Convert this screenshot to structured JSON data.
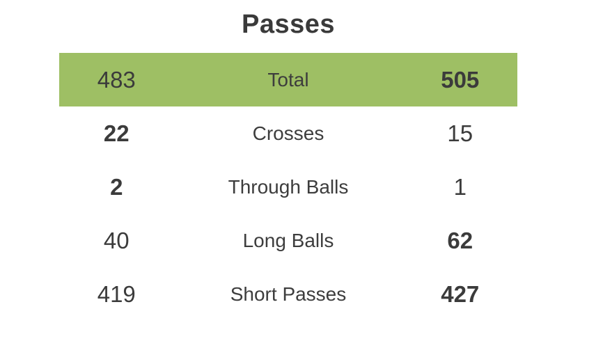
{
  "title": "Passes",
  "colors": {
    "highlight_row_bg": "#9EBF64",
    "text": "#3B3B3B"
  },
  "rows": [
    {
      "label": "Total",
      "home_value": "483",
      "away_value": "505",
      "highlighted": true,
      "home_bold": false,
      "away_bold": true
    },
    {
      "label": "Crosses",
      "home_value": "22",
      "away_value": "15",
      "highlighted": false,
      "home_bold": true,
      "away_bold": false
    },
    {
      "label": "Through Balls",
      "home_value": "2",
      "away_value": "1",
      "highlighted": false,
      "home_bold": true,
      "away_bold": false
    },
    {
      "label": "Long Balls",
      "home_value": "40",
      "away_value": "62",
      "highlighted": false,
      "home_bold": false,
      "away_bold": true
    },
    {
      "label": "Short Passes",
      "home_value": "419",
      "away_value": "427",
      "highlighted": false,
      "home_bold": false,
      "away_bold": true
    }
  ],
  "chart_data": {
    "type": "table",
    "title": "Passes",
    "categories": [
      "Total",
      "Crosses",
      "Through Balls",
      "Long Balls",
      "Short Passes"
    ],
    "series": [
      {
        "name": "home",
        "values": [
          483,
          22,
          2,
          40,
          419
        ]
      },
      {
        "name": "away",
        "values": [
          505,
          15,
          1,
          62,
          427
        ]
      }
    ],
    "highlighted_row": "Total",
    "bold_rule": "higher value in each row is bold"
  }
}
